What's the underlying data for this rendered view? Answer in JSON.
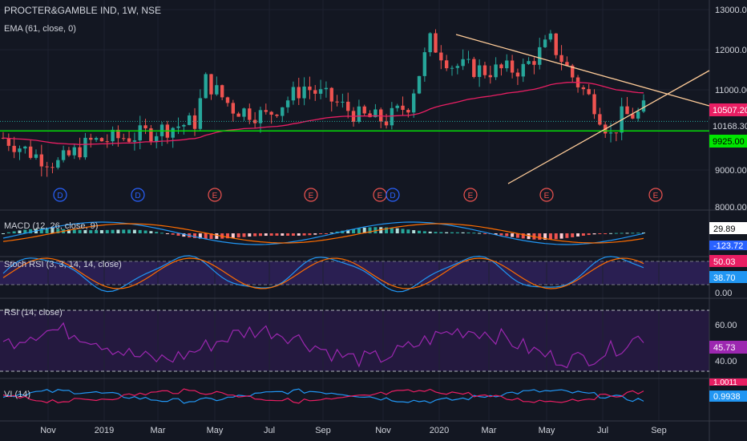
{
  "header": {
    "symbol_line": "PROCTER&GAMBLE IND, 1W, NSE",
    "ema_line": "EMA (61, close, 0)"
  },
  "price_axis": {
    "ticks": [
      "13000.00",
      "12000.00",
      "11000.00",
      "9000.00",
      "8000.00"
    ],
    "badges": [
      {
        "text": "10507.20",
        "color": "#e91e63",
        "text_color": "#ffffff"
      },
      {
        "text": "10168.30",
        "color": "#131722",
        "text_color": "#d1d4dc"
      },
      {
        "text": "9925.00",
        "color": "#00e600",
        "text_color": "#000000"
      }
    ]
  },
  "events": [
    "D",
    "D",
    "E",
    "E",
    "E",
    "D",
    "E",
    "E",
    "E"
  ],
  "macd": {
    "label": "MACD (12, 26, close, 9)",
    "badges": [
      {
        "text": "29.89",
        "color": "#ffffff"
      },
      {
        "text": "-123.72",
        "color": "#2962ff"
      }
    ]
  },
  "stoch": {
    "label": "Stoch RSI (3, 3, 14, 14, close)",
    "badges": [
      {
        "text": "50.03",
        "color": "#e91e63"
      },
      {
        "text": "38.70",
        "color": "#2196f3"
      }
    ],
    "axis": [
      "0.00"
    ]
  },
  "rsi": {
    "label": "RSI (14, close)",
    "axis": [
      "60.00",
      "40.00"
    ],
    "badge": {
      "text": "45.73",
      "color": "#9c27b0"
    }
  },
  "vi": {
    "label": "VI (14)",
    "badges": [
      {
        "text": "1.0011",
        "color": "#e91e63"
      },
      {
        "text": "0.9938",
        "color": "#2196f3"
      }
    ]
  },
  "time_axis": [
    "Nov",
    "2019",
    "Mar",
    "May",
    "Jul",
    "Sep",
    "Nov",
    "2020",
    "Mar",
    "May",
    "Jul",
    "Sep"
  ],
  "colors": {
    "up": "#26a69a",
    "down": "#ef5350",
    "ema": "#e91e63",
    "trend": "#ffcc99",
    "support": "#00e600"
  }
}
